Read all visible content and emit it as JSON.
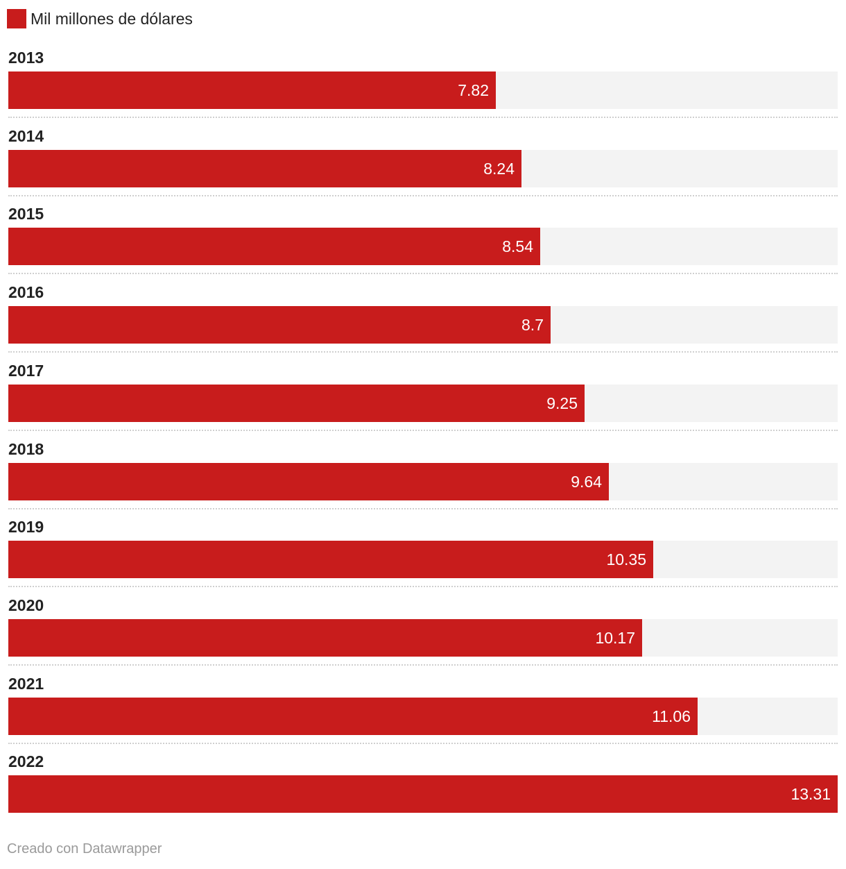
{
  "chart_data": {
    "type": "bar",
    "orientation": "horizontal",
    "categories": [
      "2013",
      "2014",
      "2015",
      "2016",
      "2017",
      "2018",
      "2019",
      "2020",
      "2021",
      "2022"
    ],
    "series": [
      {
        "name": "Mil millones de dólares",
        "values": [
          7.82,
          8.24,
          8.54,
          8.7,
          9.25,
          9.64,
          10.35,
          10.17,
          11.06,
          13.31
        ],
        "value_labels": [
          "7.82",
          "8.24",
          "8.54",
          "8.7",
          "9.25",
          "9.64",
          "10.35",
          "10.17",
          "11.06",
          "13.31"
        ]
      }
    ],
    "xlim": [
      0,
      13.31
    ],
    "legend_position": "top-left",
    "grid": false
  },
  "colors": {
    "bar": "#c81c1c",
    "track": "#f3f3f3"
  },
  "credit": "Creado con Datawrapper"
}
